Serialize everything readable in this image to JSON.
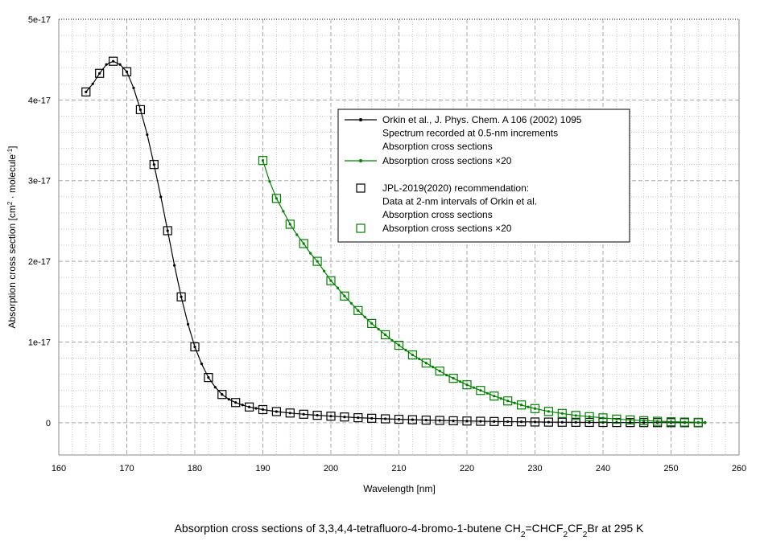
{
  "chart_data": {
    "type": "line",
    "xlabel": "Wavelength [nm]",
    "ylabel": {
      "prefix": "Absorption cross section [cm",
      "sup1": "2",
      "mid": " · molecule",
      "sup2": "-1",
      "suffix": "]"
    },
    "xlim": [
      160,
      260
    ],
    "ylim": [
      -4e-18,
      5e-17
    ],
    "x_ticks": [
      160,
      170,
      180,
      190,
      200,
      210,
      220,
      230,
      240,
      250,
      260
    ],
    "x_tick_labels": [
      "160",
      "170",
      "180",
      "190",
      "200",
      "210",
      "220",
      "230",
      "240",
      "250",
      "260"
    ],
    "y_ticks": [
      0,
      1e-17,
      2e-17,
      3e-17,
      4e-17,
      5e-17
    ],
    "y_tick_labels": [
      "0",
      "1e-17",
      "2e-17",
      "3e-17",
      "4e-17",
      "5e-17"
    ],
    "grid": true,
    "legend_position": "upper-right",
    "legend": [
      {
        "marker": "line-dot",
        "color": "#000000",
        "lines": [
          "Orkin et al., J. Phys. Chem. A 106 (2002) 1095",
          "Spectrum recorded at 0.5-nm increments",
          "Absorption cross sections"
        ]
      },
      {
        "marker": "line-dot",
        "color": "#008000",
        "lines": [
          "Absorption cross sections ×20"
        ]
      },
      {
        "marker": "square",
        "color": "#000000",
        "lines": [
          "JPL-2019(2020) recommendation:",
          "Data at 2-nm intervals of Orkin et al.",
          "Absorption cross sections"
        ]
      },
      {
        "marker": "square",
        "color": "#008000",
        "lines": [
          "Absorption cross sections ×20"
        ]
      }
    ],
    "caption": {
      "before": "Absorption cross sections of 3,3,4,4-tetrafluoro-4-bromo-1-butene CH",
      "s1": "2",
      "mid1": "=CHCF",
      "s2": "2",
      "mid2": "CF",
      "s3": "2",
      "after": "Br at 295 K"
    },
    "series": [
      {
        "name": "Orkin et al., J. Phys. Chem. A 106 (2002) 1095",
        "kind": "line",
        "color": "#000000",
        "x": [
          164,
          165,
          166,
          167,
          168,
          169,
          170,
          171,
          172,
          173,
          174,
          175,
          176,
          177,
          178,
          179,
          180,
          181,
          182,
          183,
          184,
          185,
          186,
          187,
          188,
          189,
          190,
          192,
          194,
          196,
          198,
          200,
          202,
          204,
          206,
          208,
          210,
          212,
          214,
          216,
          218,
          220,
          222,
          224,
          226,
          228,
          230,
          232,
          234,
          236,
          238,
          240,
          242,
          244,
          246,
          248,
          250,
          252,
          254,
          255
        ],
        "y": [
          4.1e-17,
          4.2e-17,
          4.33e-17,
          4.44e-17,
          4.48e-17,
          4.44e-17,
          4.35e-17,
          4.15e-17,
          3.88e-17,
          3.57e-17,
          3.2e-17,
          2.8e-17,
          2.38e-17,
          1.95e-17,
          1.56e-17,
          1.22e-17,
          9.4e-18,
          7.3e-18,
          5.6e-18,
          4.4e-18,
          3.5e-18,
          2.9e-18,
          2.5e-18,
          2.2e-18,
          1.95e-18,
          1.78e-18,
          1.63e-18,
          1.38e-18,
          1.2e-18,
          1.05e-18,
          9.2e-19,
          8.1e-19,
          7.1e-19,
          6.2e-19,
          5.5e-19,
          4.8e-19,
          4.2e-19,
          3.7e-19,
          3.2e-19,
          2.8e-19,
          2.4e-19,
          2.1e-19,
          1.8e-19,
          1.5e-19,
          1.3e-19,
          1.1e-19,
          9e-20,
          7.5e-20,
          6e-20,
          5e-20,
          4e-20,
          3.2e-20,
          2.6e-20,
          2e-20,
          1.5e-20,
          1.1e-20,
          8e-21,
          6e-21,
          4e-21,
          3e-21
        ]
      },
      {
        "name": "JPL-2019(2020) recommendation: Data at 2-nm intervals of Orkin et al.",
        "kind": "square",
        "color": "#000000",
        "x": [
          164,
          166,
          168,
          170,
          172,
          174,
          176,
          178,
          180,
          182,
          184,
          186,
          188,
          190,
          192,
          194,
          196,
          198,
          200,
          202,
          204,
          206,
          208,
          210,
          212,
          214,
          216,
          218,
          220,
          222,
          224,
          226,
          228,
          230,
          232,
          234,
          236,
          238,
          240,
          242,
          244,
          246,
          248,
          250,
          252,
          254
        ],
        "y": [
          4.1e-17,
          4.33e-17,
          4.48e-17,
          4.35e-17,
          3.88e-17,
          3.2e-17,
          2.38e-17,
          1.56e-17,
          9.4e-18,
          5.6e-18,
          3.5e-18,
          2.5e-18,
          1.95e-18,
          1.63e-18,
          1.38e-18,
          1.2e-18,
          1.05e-18,
          9.2e-19,
          8.1e-19,
          7.1e-19,
          6.2e-19,
          5.5e-19,
          4.8e-19,
          4.2e-19,
          3.7e-19,
          3.2e-19,
          2.8e-19,
          2.4e-19,
          2.1e-19,
          1.8e-19,
          1.5e-19,
          1.3e-19,
          1.1e-19,
          9e-20,
          7.5e-20,
          6e-20,
          5e-20,
          4e-20,
          3.2e-20,
          2.6e-20,
          2e-20,
          1.5e-20,
          1.1e-20,
          8e-21,
          6e-21,
          4e-21
        ]
      },
      {
        "name": "Absorption cross sections ×20",
        "kind": "line",
        "color": "#008000",
        "x": [
          190,
          191,
          192,
          193,
          194,
          195,
          196,
          197,
          198,
          199,
          200,
          201,
          202,
          203,
          204,
          205,
          206,
          207,
          208,
          209,
          210,
          211,
          212,
          213,
          214,
          215,
          216,
          217,
          218,
          219,
          220,
          221,
          222,
          223,
          224,
          225,
          226,
          227,
          228,
          229,
          230,
          232,
          234,
          236,
          238,
          240,
          242,
          244,
          246,
          248,
          250,
          252,
          254,
          255
        ],
        "y": [
          3.25e-17,
          2.99e-17,
          2.78e-17,
          2.62e-17,
          2.46e-17,
          2.33e-17,
          2.22e-17,
          2.1e-17,
          2e-17,
          1.88e-17,
          1.76e-17,
          1.67e-17,
          1.57e-17,
          1.48e-17,
          1.39e-17,
          1.31e-17,
          1.23e-17,
          1.16e-17,
          1.09e-17,
          1.02e-17,
          9.6e-18,
          9e-18,
          8.4e-18,
          7.9e-18,
          7.4e-18,
          6.9e-18,
          6.4e-18,
          5.9e-18,
          5.5e-18,
          5.1e-18,
          4.7e-18,
          4.35e-18,
          4e-18,
          3.65e-18,
          3.3e-18,
          3e-18,
          2.7e-18,
          2.45e-18,
          2.2e-18,
          1.95e-18,
          1.75e-18,
          1.4e-18,
          1.15e-18,
          9e-19,
          7.5e-19,
          6e-19,
          4.5e-19,
          3.5e-19,
          2.5e-19,
          1.8e-19,
          1.2e-19,
          8e-20,
          5e-20,
          4e-20
        ]
      },
      {
        "name": "Absorption cross sections ×20",
        "kind": "square",
        "color": "#008000",
        "x": [
          190,
          192,
          194,
          196,
          198,
          200,
          202,
          204,
          206,
          208,
          210,
          212,
          214,
          216,
          218,
          220,
          222,
          224,
          226,
          228,
          230,
          232,
          234,
          236,
          238,
          240,
          242,
          244,
          246,
          248,
          250,
          252,
          254
        ],
        "y": [
          3.25e-17,
          2.78e-17,
          2.46e-17,
          2.22e-17,
          2e-17,
          1.76e-17,
          1.57e-17,
          1.39e-17,
          1.23e-17,
          1.09e-17,
          9.6e-18,
          8.4e-18,
          7.4e-18,
          6.4e-18,
          5.5e-18,
          4.7e-18,
          4e-18,
          3.3e-18,
          2.7e-18,
          2.2e-18,
          1.75e-18,
          1.4e-18,
          1.15e-18,
          9e-19,
          7.5e-19,
          6e-19,
          4.5e-19,
          3.5e-19,
          2.5e-19,
          1.8e-19,
          1.2e-19,
          8e-20,
          5e-20
        ]
      }
    ]
  }
}
